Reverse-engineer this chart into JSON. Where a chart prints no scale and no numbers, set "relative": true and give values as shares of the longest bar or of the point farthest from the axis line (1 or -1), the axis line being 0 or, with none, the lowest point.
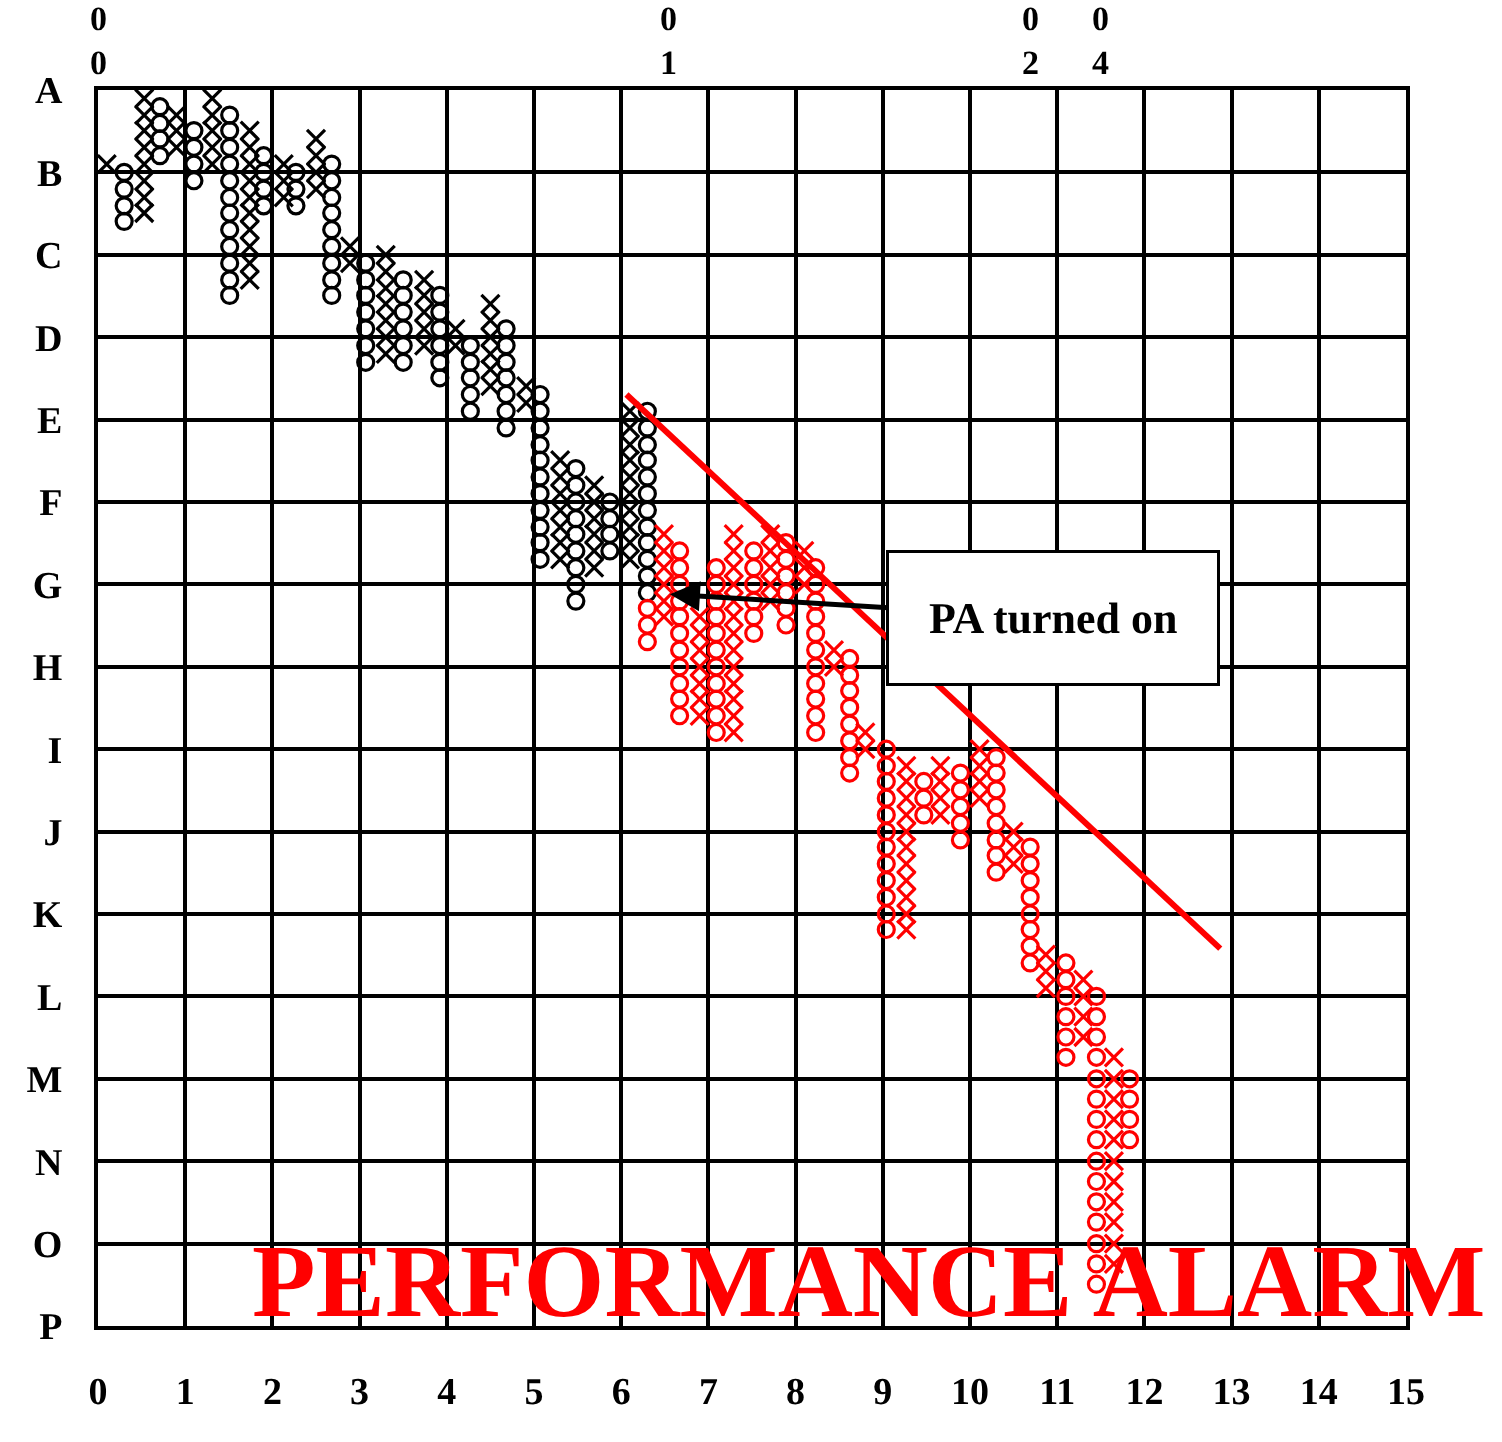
{
  "chart_data": {
    "type": "scatter",
    "title": "PERFORMANCE ALARM",
    "relative": true,
    "xlim": [
      0,
      15
    ],
    "xticks": [
      0,
      1,
      2,
      3,
      4,
      5,
      6,
      7,
      8,
      9,
      10,
      11,
      12,
      13,
      14,
      15
    ],
    "y_categories": [
      "A",
      "B",
      "C",
      "D",
      "E",
      "F",
      "G",
      "H",
      "I",
      "J",
      "K",
      "L",
      "M",
      "N",
      "O",
      "P"
    ],
    "grid": true,
    "annotations": [
      "0\n0",
      "0\n1",
      "0\n2",
      "0\n4",
      {
        "text": "PA turned on",
        "x": 6.49,
        "y": -0.422
      }
    ],
    "series": [
      {
        "marker": "cross",
        "color": "#000000",
        "x": [
          0.1,
          0.53,
          0.53,
          0.53,
          0.53,
          0.53,
          0.53,
          0.53,
          0.53,
          0.9,
          0.9,
          0.9,
          1.31,
          1.31,
          1.31,
          1.31,
          1.31,
          1.74,
          1.74,
          1.74,
          1.74,
          1.74,
          1.74,
          1.74,
          1.74,
          1.74,
          1.74,
          2.13,
          2.13,
          2.13,
          2.5,
          2.5,
          2.5,
          2.5,
          2.89,
          2.89,
          3.3,
          3.3,
          3.3,
          3.3,
          3.3,
          3.3,
          3.3,
          3.74,
          3.74,
          3.74,
          3.74,
          3.74,
          4.1,
          4.1,
          4.5,
          4.5,
          4.5,
          4.5,
          4.5,
          4.5,
          4.91,
          4.91,
          5.3,
          5.3,
          5.3,
          5.3,
          5.3,
          5.3,
          5.3,
          5.69,
          5.69,
          5.69,
          5.69,
          5.69,
          5.69,
          6.1,
          6.1,
          6.1,
          6.1,
          6.1,
          6.1,
          6.1,
          6.1,
          6.1,
          6.1
        ],
        "values": [
          -0.062,
          -0.007,
          -0.021,
          -0.034,
          -0.048,
          -0.062,
          -0.076,
          -0.09,
          -0.103,
          -0.021,
          -0.034,
          -0.048,
          -0.007,
          -0.021,
          -0.034,
          -0.048,
          -0.062,
          -0.034,
          -0.048,
          -0.062,
          -0.076,
          -0.09,
          -0.103,
          -0.117,
          -0.131,
          -0.145,
          -0.159,
          -0.062,
          -0.076,
          -0.09,
          -0.041,
          -0.055,
          -0.069,
          -0.083,
          -0.131,
          -0.145,
          -0.138,
          -0.152,
          -0.166,
          -0.179,
          -0.193,
          -0.207,
          -0.221,
          -0.159,
          -0.172,
          -0.186,
          -0.2,
          -0.214,
          -0.2,
          -0.214,
          -0.179,
          -0.193,
          -0.207,
          -0.221,
          -0.234,
          -0.248,
          -0.248,
          -0.262,
          -0.31,
          -0.324,
          -0.338,
          -0.352,
          -0.366,
          -0.379,
          -0.393,
          -0.331,
          -0.345,
          -0.359,
          -0.372,
          -0.386,
          -0.4,
          -0.269,
          -0.283,
          -0.297,
          -0.31,
          -0.324,
          -0.338,
          -0.352,
          -0.366,
          -0.379,
          -0.393
        ]
      },
      {
        "marker": "circle",
        "color": "#000000",
        "x": [
          0.3,
          0.3,
          0.3,
          0.3,
          0.71,
          0.71,
          0.71,
          0.71,
          1.1,
          1.1,
          1.1,
          1.1,
          1.51,
          1.51,
          1.51,
          1.51,
          1.51,
          1.51,
          1.51,
          1.51,
          1.51,
          1.51,
          1.51,
          1.51,
          1.9,
          1.9,
          1.9,
          1.9,
          2.27,
          2.27,
          2.27,
          2.68,
          2.68,
          2.68,
          2.68,
          2.68,
          2.68,
          2.68,
          2.68,
          2.68,
          3.07,
          3.07,
          3.07,
          3.07,
          3.07,
          3.07,
          3.07,
          3.5,
          3.5,
          3.5,
          3.5,
          3.5,
          3.5,
          3.92,
          3.92,
          3.92,
          3.92,
          3.92,
          3.92,
          4.27,
          4.27,
          4.27,
          4.27,
          4.27,
          4.68,
          4.68,
          4.68,
          4.68,
          4.68,
          4.68,
          4.68,
          5.07,
          5.07,
          5.07,
          5.07,
          5.07,
          5.07,
          5.07,
          5.07,
          5.07,
          5.07,
          5.07,
          5.48,
          5.48,
          5.48,
          5.48,
          5.48,
          5.48,
          5.48,
          5.48,
          5.48,
          5.87,
          5.87,
          5.87,
          5.87,
          6.3,
          6.3,
          6.3,
          6.3,
          6.3,
          6.3,
          6.3,
          6.3,
          6.3,
          6.3,
          6.3,
          6.3
        ],
        "values": [
          -0.069,
          -0.083,
          -0.097,
          -0.11,
          -0.014,
          -0.028,
          -0.041,
          -0.055,
          -0.034,
          -0.048,
          -0.062,
          -0.076,
          -0.021,
          -0.034,
          -0.048,
          -0.062,
          -0.076,
          -0.09,
          -0.103,
          -0.117,
          -0.131,
          -0.145,
          -0.159,
          -0.172,
          -0.055,
          -0.069,
          -0.083,
          -0.097,
          -0.069,
          -0.083,
          -0.097,
          -0.062,
          -0.076,
          -0.09,
          -0.103,
          -0.117,
          -0.131,
          -0.145,
          -0.159,
          -0.172,
          -0.145,
          -0.159,
          -0.172,
          -0.186,
          -0.2,
          -0.214,
          -0.228,
          -0.159,
          -0.172,
          -0.186,
          -0.2,
          -0.214,
          -0.228,
          -0.172,
          -0.186,
          -0.2,
          -0.214,
          -0.228,
          -0.241,
          -0.214,
          -0.228,
          -0.241,
          -0.255,
          -0.269,
          -0.2,
          -0.214,
          -0.228,
          -0.241,
          -0.255,
          -0.269,
          -0.283,
          -0.255,
          -0.269,
          -0.283,
          -0.297,
          -0.31,
          -0.324,
          -0.338,
          -0.352,
          -0.366,
          -0.379,
          -0.393,
          -0.317,
          -0.331,
          -0.345,
          -0.359,
          -0.372,
          -0.386,
          -0.4,
          -0.414,
          -0.428,
          -0.345,
          -0.359,
          -0.372,
          -0.386,
          -0.269,
          -0.283,
          -0.297,
          -0.31,
          -0.324,
          -0.338,
          -0.352,
          -0.366,
          -0.379,
          -0.393,
          -0.407,
          -0.421
        ]
      },
      {
        "marker": "cross",
        "color": "#ff0000",
        "x": [
          6.49,
          6.49,
          6.49,
          6.49,
          6.49,
          6.49,
          6.9,
          6.9,
          6.9,
          6.9,
          6.9,
          6.9,
          6.9,
          7.29,
          7.29,
          7.29,
          7.29,
          7.29,
          7.29,
          7.29,
          7.29,
          7.29,
          7.29,
          7.29,
          7.29,
          7.29,
          7.71,
          7.71,
          7.71,
          7.71,
          7.71,
          8.1,
          8.1,
          8.1,
          8.44,
          8.44,
          8.8,
          8.8,
          9.27,
          9.27,
          9.27,
          9.27,
          9.27,
          9.27,
          9.27,
          9.27,
          9.27,
          9.27,
          9.27,
          9.66,
          9.66,
          9.66,
          9.66,
          10.11,
          10.11,
          10.11,
          10.11,
          10.5,
          10.5,
          10.5,
          10.87,
          10.87,
          10.87,
          11.3,
          11.3,
          11.3,
          11.3,
          11.65,
          11.65,
          11.65,
          11.65,
          11.65,
          11.65,
          11.65,
          11.65,
          11.65,
          11.65,
          11.65
        ],
        "values": [
          -0.372,
          -0.386,
          -0.4,
          -0.414,
          -0.428,
          -0.441,
          -0.441,
          -0.455,
          -0.469,
          -0.483,
          -0.497,
          -0.51,
          -0.524,
          -0.372,
          -0.386,
          -0.4,
          -0.414,
          -0.428,
          -0.441,
          -0.455,
          -0.469,
          -0.483,
          -0.497,
          -0.51,
          -0.524,
          -0.538,
          -0.372,
          -0.386,
          -0.4,
          -0.414,
          -0.428,
          -0.386,
          -0.4,
          -0.414,
          -0.469,
          -0.483,
          -0.538,
          -0.552,
          -0.566,
          -0.579,
          -0.593,
          -0.607,
          -0.621,
          -0.634,
          -0.648,
          -0.662,
          -0.676,
          -0.69,
          -0.703,
          -0.566,
          -0.579,
          -0.593,
          -0.607,
          -0.552,
          -0.566,
          -0.579,
          -0.593,
          -0.621,
          -0.634,
          -0.648,
          -0.724,
          -0.738,
          -0.752,
          -0.745,
          -0.759,
          -0.776,
          -0.793,
          -0.81,
          -0.828,
          -0.845,
          -0.862,
          -0.879,
          -0.897,
          -0.914,
          -0.931,
          -0.948,
          -0.966,
          -0.983
        ]
      },
      {
        "marker": "circle",
        "color": "#ff0000",
        "x": [
          6.3,
          6.3,
          6.3,
          6.67,
          6.67,
          6.67,
          6.67,
          6.67,
          6.67,
          6.67,
          6.67,
          6.67,
          6.67,
          6.67,
          7.09,
          7.09,
          7.09,
          7.09,
          7.09,
          7.09,
          7.09,
          7.09,
          7.09,
          7.09,
          7.09,
          7.52,
          7.52,
          7.52,
          7.52,
          7.52,
          7.52,
          7.89,
          7.89,
          7.89,
          7.89,
          7.89,
          7.89,
          8.23,
          8.23,
          8.23,
          8.23,
          8.23,
          8.23,
          8.23,
          8.23,
          8.23,
          8.23,
          8.23,
          8.62,
          8.62,
          8.62,
          8.62,
          8.62,
          8.62,
          8.62,
          8.62,
          9.04,
          9.04,
          9.04,
          9.04,
          9.04,
          9.04,
          9.04,
          9.04,
          9.04,
          9.04,
          9.04,
          9.04,
          9.47,
          9.47,
          9.47,
          9.89,
          9.89,
          9.89,
          9.89,
          9.89,
          10.3,
          10.3,
          10.3,
          10.3,
          10.3,
          10.3,
          10.3,
          10.3,
          10.69,
          10.69,
          10.69,
          10.69,
          10.69,
          10.69,
          10.69,
          10.69,
          11.1,
          11.1,
          11.1,
          11.1,
          11.1,
          11.1,
          11.45,
          11.45,
          11.45,
          11.45,
          11.45,
          11.45,
          11.45,
          11.45,
          11.45,
          11.45,
          11.45,
          11.45,
          11.45,
          11.45,
          11.45,
          11.83,
          11.83,
          11.83,
          11.83
        ],
        "values": [
          -0.434,
          -0.448,
          -0.462,
          -0.386,
          -0.4,
          -0.414,
          -0.428,
          -0.441,
          -0.455,
          -0.469,
          -0.483,
          -0.497,
          -0.51,
          -0.524,
          -0.4,
          -0.414,
          -0.428,
          -0.441,
          -0.455,
          -0.469,
          -0.483,
          -0.497,
          -0.51,
          -0.524,
          -0.538,
          -0.386,
          -0.4,
          -0.414,
          -0.428,
          -0.441,
          -0.455,
          -0.379,
          -0.393,
          -0.407,
          -0.421,
          -0.434,
          -0.448,
          -0.4,
          -0.414,
          -0.428,
          -0.441,
          -0.455,
          -0.469,
          -0.483,
          -0.497,
          -0.51,
          -0.524,
          -0.538,
          -0.476,
          -0.49,
          -0.503,
          -0.517,
          -0.531,
          -0.545,
          -0.559,
          -0.572,
          -0.552,
          -0.566,
          -0.579,
          -0.593,
          -0.607,
          -0.621,
          -0.634,
          -0.648,
          -0.662,
          -0.676,
          -0.69,
          -0.703,
          -0.579,
          -0.593,
          -0.607,
          -0.572,
          -0.586,
          -0.6,
          -0.614,
          -0.628,
          -0.559,
          -0.572,
          -0.586,
          -0.6,
          -0.614,
          -0.628,
          -0.641,
          -0.655,
          -0.634,
          -0.648,
          -0.662,
          -0.676,
          -0.69,
          -0.703,
          -0.717,
          -0.731,
          -0.731,
          -0.745,
          -0.759,
          -0.776,
          -0.793,
          -0.81,
          -0.759,
          -0.776,
          -0.793,
          -0.81,
          -0.828,
          -0.845,
          -0.862,
          -0.879,
          -0.897,
          -0.914,
          -0.931,
          -0.948,
          -0.966,
          -0.983,
          -1.0,
          -0.828,
          -0.845,
          -0.862,
          -0.879
        ]
      },
      {
        "type": "line",
        "line_style": "solid",
        "color": "#ff0000",
        "x": [
          6.06,
          12.87
        ],
        "values": [
          -0.255,
          -0.719
        ]
      }
    ]
  }
}
